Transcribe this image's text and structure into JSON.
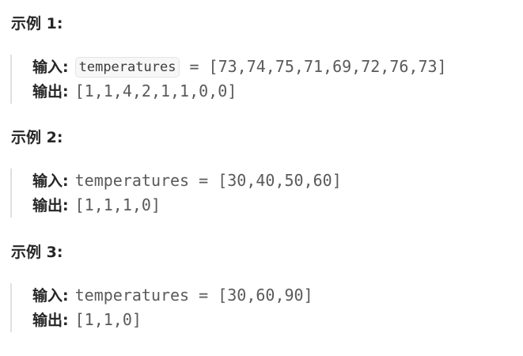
{
  "examples": [
    {
      "title": "示例 1:",
      "input_label": "输入:",
      "input_var": "temperatures",
      "input_rest": " = [73,74,75,71,69,72,76,73]",
      "output_label": "输出:",
      "output_value": "[1,1,4,2,1,1,0,0]"
    },
    {
      "title": "示例 2:",
      "input_label": "输入:",
      "input_value": "temperatures = [30,40,50,60]",
      "output_label": "输出:",
      "output_value": "[1,1,1,0]"
    },
    {
      "title": "示例 3:",
      "input_label": "输入:",
      "input_value": "temperatures = [30,60,90]",
      "output_label": "输出:",
      "output_value": "[1,1,0]"
    }
  ]
}
